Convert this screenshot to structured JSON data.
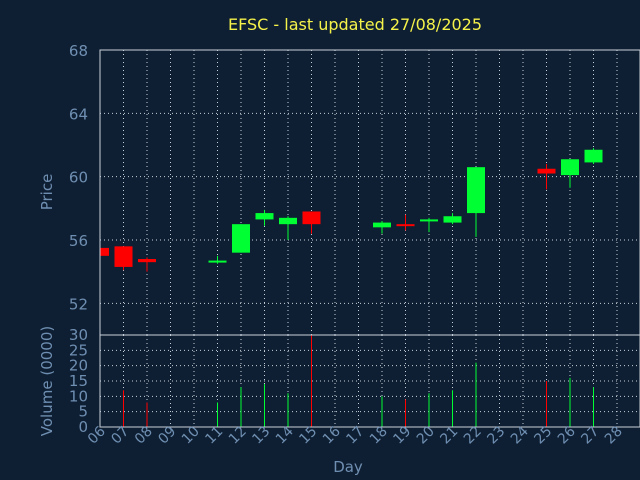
{
  "chart_data": {
    "type": "candlestick",
    "title": "EFSC - last updated 27/08/2025",
    "xlabel": "Day",
    "price_panel": {
      "ylabel": "Price",
      "ylim": [
        50,
        68
      ],
      "yticks": [
        52,
        56,
        60,
        64,
        68
      ]
    },
    "volume_panel": {
      "ylabel": "Volume (0000)",
      "ylim": [
        0,
        30
      ],
      "yticks": [
        0,
        5,
        10,
        15,
        20,
        25,
        30
      ]
    },
    "x_tick_labels": [
      "06",
      "07",
      "08",
      "09",
      "10",
      "11",
      "12",
      "13",
      "14",
      "15",
      "16",
      "17",
      "18",
      "19",
      "20",
      "21",
      "22",
      "23",
      "24",
      "25",
      "26",
      "27",
      "28"
    ],
    "up_color": "#00ff33",
    "down_color": "#ff0000",
    "candles": [
      {
        "day": "06",
        "open": 55.5,
        "close": 55.0,
        "high": 55.6,
        "low": 54.9,
        "volume": 0
      },
      {
        "day": "07",
        "open": 55.6,
        "close": 54.3,
        "high": 55.6,
        "low": 54.1,
        "volume": 12
      },
      {
        "day": "08",
        "open": 54.8,
        "close": 54.6,
        "high": 54.9,
        "low": 54.0,
        "volume": 8
      },
      {
        "day": "11",
        "open": 54.6,
        "close": 54.7,
        "high": 55.0,
        "low": 54.5,
        "volume": 8
      },
      {
        "day": "12",
        "open": 55.2,
        "close": 57.0,
        "high": 57.0,
        "low": 55.2,
        "volume": 13
      },
      {
        "day": "13",
        "open": 57.3,
        "close": 57.7,
        "high": 57.9,
        "low": 56.9,
        "volume": 14
      },
      {
        "day": "14",
        "open": 57.0,
        "close": 57.4,
        "high": 57.5,
        "low": 56.0,
        "volume": 11
      },
      {
        "day": "15",
        "open": 57.8,
        "close": 57.0,
        "high": 57.8,
        "low": 56.4,
        "volume": 30
      },
      {
        "day": "18",
        "open": 56.8,
        "close": 57.1,
        "high": 57.2,
        "low": 56.4,
        "volume": 10
      },
      {
        "day": "19",
        "open": 57.0,
        "close": 56.9,
        "high": 57.6,
        "low": 56.6,
        "volume": 9
      },
      {
        "day": "20",
        "open": 57.2,
        "close": 57.3,
        "high": 57.4,
        "low": 56.5,
        "volume": 11
      },
      {
        "day": "21",
        "open": 57.1,
        "close": 57.5,
        "high": 57.7,
        "low": 57.0,
        "volume": 12
      },
      {
        "day": "22",
        "open": 57.7,
        "close": 60.6,
        "high": 60.6,
        "low": 56.2,
        "volume": 21
      },
      {
        "day": "25",
        "open": 60.5,
        "close": 60.2,
        "high": 60.8,
        "low": 59.2,
        "volume": 15
      },
      {
        "day": "26",
        "open": 60.1,
        "close": 61.1,
        "high": 61.1,
        "low": 59.3,
        "volume": 16
      },
      {
        "day": "27",
        "open": 60.9,
        "close": 61.7,
        "high": 61.8,
        "low": 60.8,
        "volume": 13
      }
    ]
  }
}
